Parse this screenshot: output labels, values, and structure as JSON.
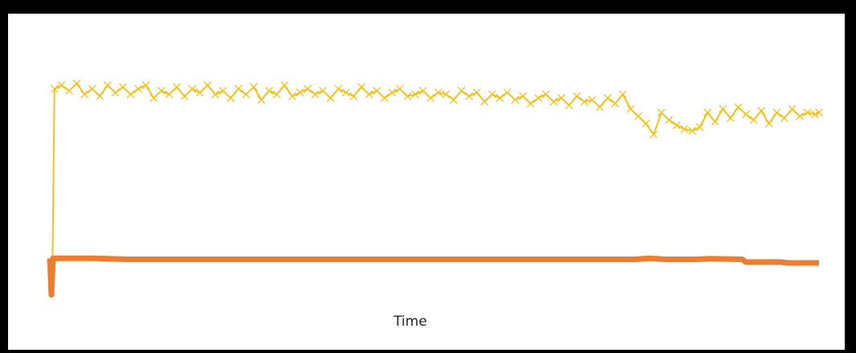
{
  "colors": {
    "frame": "#000000",
    "background": "#ffffff",
    "series_1": "#F5C11A",
    "series_2": "#ED7D31"
  },
  "chart_data": {
    "type": "line",
    "title": "",
    "xlabel": "Time",
    "ylabel": "",
    "xlim": [
      0,
      1
    ],
    "ylim": [
      -0.25,
      1.1
    ],
    "grid": false,
    "legend": "none",
    "markers": {
      "series_1": "x-cross",
      "series_2": "none"
    },
    "series": [
      {
        "color": "#F5C11A",
        "x": [
          0.0,
          0.003,
          0.006,
          0.015,
          0.025,
          0.035,
          0.045,
          0.055,
          0.065,
          0.075,
          0.085,
          0.095,
          0.105,
          0.115,
          0.125,
          0.135,
          0.145,
          0.155,
          0.165,
          0.175,
          0.185,
          0.195,
          0.205,
          0.215,
          0.225,
          0.235,
          0.245,
          0.255,
          0.265,
          0.275,
          0.285,
          0.295,
          0.305,
          0.315,
          0.325,
          0.335,
          0.345,
          0.355,
          0.365,
          0.375,
          0.385,
          0.395,
          0.405,
          0.415,
          0.425,
          0.435,
          0.445,
          0.455,
          0.465,
          0.475,
          0.485,
          0.495,
          0.505,
          0.515,
          0.525,
          0.535,
          0.545,
          0.555,
          0.565,
          0.575,
          0.585,
          0.595,
          0.605,
          0.615,
          0.625,
          0.635,
          0.645,
          0.655,
          0.665,
          0.675,
          0.685,
          0.695,
          0.705,
          0.715,
          0.725,
          0.735,
          0.745,
          0.755,
          0.765,
          0.775,
          0.785,
          0.795,
          0.805,
          0.815,
          0.825,
          0.835,
          0.845,
          0.855,
          0.865,
          0.875,
          0.885,
          0.895,
          0.905,
          0.915,
          0.925,
          0.935,
          0.945,
          0.955,
          0.965,
          0.975,
          0.985,
          0.995,
          1.0
        ],
        "values": [
          0.0,
          -0.2,
          0.93,
          0.95,
          0.92,
          0.96,
          0.9,
          0.93,
          0.89,
          0.95,
          0.91,
          0.94,
          0.9,
          0.93,
          0.95,
          0.88,
          0.92,
          0.9,
          0.94,
          0.89,
          0.93,
          0.91,
          0.95,
          0.9,
          0.92,
          0.88,
          0.93,
          0.9,
          0.94,
          0.87,
          0.92,
          0.9,
          0.95,
          0.89,
          0.91,
          0.93,
          0.9,
          0.92,
          0.88,
          0.93,
          0.91,
          0.89,
          0.94,
          0.9,
          0.92,
          0.88,
          0.91,
          0.93,
          0.89,
          0.9,
          0.92,
          0.88,
          0.91,
          0.9,
          0.87,
          0.92,
          0.89,
          0.91,
          0.86,
          0.9,
          0.88,
          0.91,
          0.87,
          0.89,
          0.85,
          0.88,
          0.9,
          0.86,
          0.88,
          0.84,
          0.89,
          0.86,
          0.87,
          0.83,
          0.88,
          0.85,
          0.9,
          0.82,
          0.78,
          0.74,
          0.68,
          0.8,
          0.76,
          0.73,
          0.71,
          0.7,
          0.72,
          0.8,
          0.75,
          0.82,
          0.77,
          0.83,
          0.79,
          0.76,
          0.81,
          0.74,
          0.8,
          0.77,
          0.82,
          0.78,
          0.8,
          0.79,
          0.8
        ]
      },
      {
        "color": "#ED7D31",
        "x": [
          0.0,
          0.002,
          0.004,
          0.06,
          0.1,
          0.3,
          0.5,
          0.7,
          0.76,
          0.78,
          0.8,
          0.84,
          0.86,
          0.9,
          0.905,
          0.95,
          0.96,
          1.0
        ],
        "values": [
          0.0,
          -0.2,
          0.0,
          0.0,
          -0.005,
          -0.005,
          -0.005,
          -0.005,
          -0.005,
          0.0,
          -0.005,
          -0.005,
          -0.002,
          -0.005,
          -0.02,
          -0.02,
          -0.025,
          -0.025
        ]
      }
    ]
  }
}
